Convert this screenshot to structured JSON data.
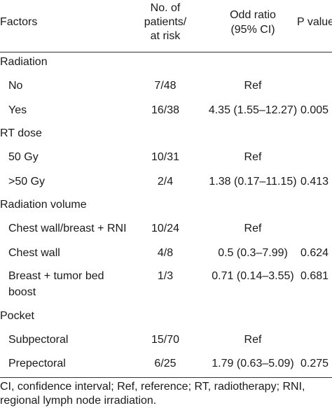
{
  "header": {
    "factors": "Factors",
    "patients_line1": "No. of",
    "patients_line2": "patients/",
    "patients_line3": "at risk",
    "odd_line1": "Odd ratio",
    "odd_line2": "(95% CI)",
    "pvalue": "P value"
  },
  "rows": {
    "radiation": "Radiation",
    "no": {
      "factor": "No",
      "patients": "7/48",
      "odd": "Ref",
      "p": ""
    },
    "yes": {
      "factor": "Yes",
      "patients": "16/38",
      "odd": "4.35 (1.55–12.27)",
      "p": "0.005"
    },
    "rt_dose": "RT dose",
    "dose50": {
      "factor": "50 Gy",
      "patients": "10/31",
      "odd": "Ref",
      "p": ""
    },
    "dose_gt50": {
      "factor": ">50 Gy",
      "patients": "2/4",
      "odd": "1.38 (0.17–11.15)",
      "p": "0.413"
    },
    "radiation_volume": "Radiation volume",
    "cw_breast_rni": {
      "factor": "Chest wall/breast + RNI",
      "patients": "10/24",
      "odd": "Ref",
      "p": ""
    },
    "chest_wall": {
      "factor": "Chest wall",
      "patients": "4/8",
      "odd": "0.5 (0.3–7.99)",
      "p": "0.624"
    },
    "breast_boost": {
      "factor_line1": "Breast + tumor bed",
      "factor_line2": "boost",
      "patients": "1/3",
      "odd": "0.71 (0.14–3.55)",
      "p": "0.681"
    },
    "pocket": "Pocket",
    "subpectoral": {
      "factor": "Subpectoral",
      "patients": "15/70",
      "odd": "Ref",
      "p": ""
    },
    "prepectoral": {
      "factor": "Prepectoral",
      "patients": "6/25",
      "odd": "1.79 (0.63–5.09)",
      "p": "0.275"
    }
  },
  "footnote": "CI, confidence interval; Ref, reference; RT, radiotherapy; RNI, regional lymph node irradiation."
}
